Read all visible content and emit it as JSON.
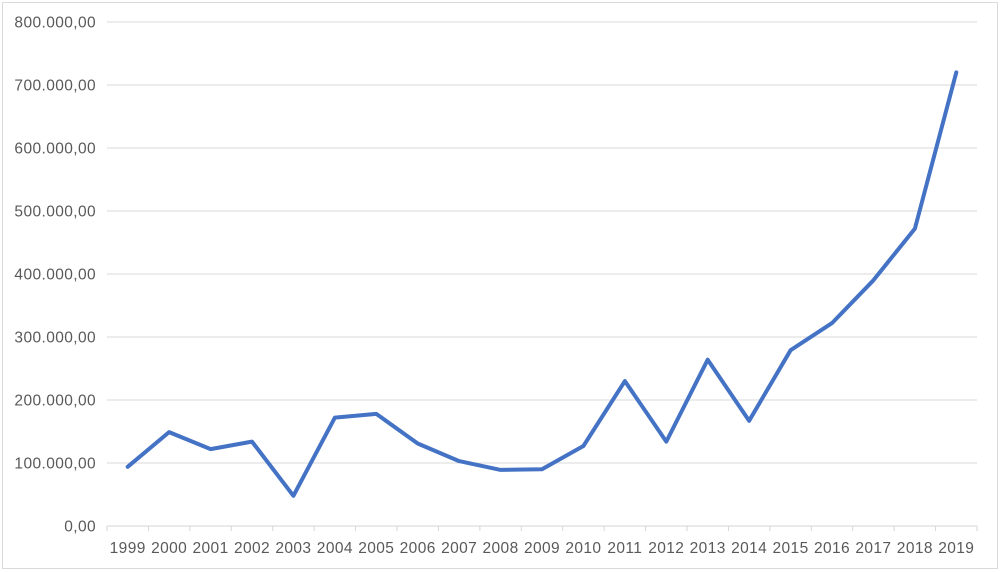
{
  "chart_data": {
    "type": "line",
    "title": "",
    "xlabel": "",
    "ylabel": "",
    "categories": [
      "1999",
      "2000",
      "2001",
      "2002",
      "2003",
      "2004",
      "2005",
      "2006",
      "2007",
      "2008",
      "2009",
      "2010",
      "2011",
      "2012",
      "2013",
      "2014",
      "2015",
      "2016",
      "2017",
      "2018",
      "2019"
    ],
    "series": [
      {
        "values": [
          94000,
          149000,
          122000,
          134000,
          48000,
          172000,
          178000,
          131000,
          103000,
          89000,
          90000,
          127000,
          230000,
          134000,
          264000,
          167000,
          279000,
          322000,
          390000,
          472000,
          720000
        ]
      }
    ],
    "ylim": [
      0,
      800000
    ],
    "y_tick_step": 100000,
    "y_tick_labels": [
      "0,00",
      "100.000,00",
      "200.000,00",
      "300.000,00",
      "400.000,00",
      "500.000,00",
      "600.000,00",
      "700.000,00",
      "800.000,00"
    ],
    "grid": true,
    "legend": "none",
    "colors": {
      "line": "#4472C4",
      "gridline": "#D9D9D9",
      "axis_line": "#D6D6D6",
      "tick_label": "#595959",
      "background": "#FFFFFF",
      "border": "#D9D9D9"
    }
  }
}
